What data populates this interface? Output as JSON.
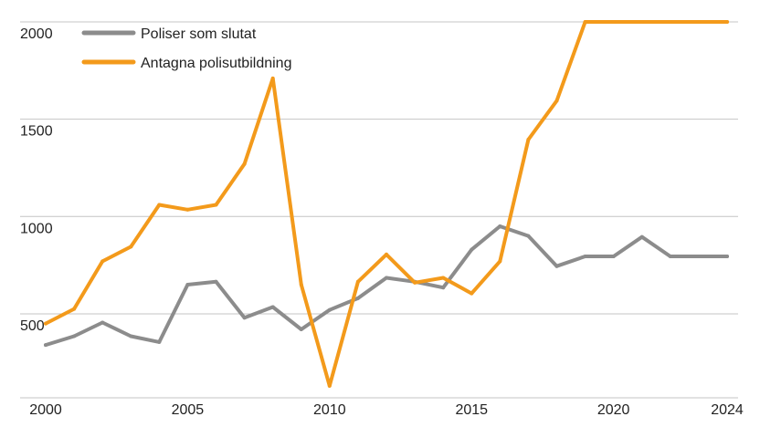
{
  "chart_data": {
    "type": "line",
    "x": [
      2000,
      2001,
      2002,
      2003,
      2004,
      2005,
      2006,
      2007,
      2008,
      2009,
      2010,
      2011,
      2012,
      2013,
      2014,
      2015,
      2016,
      2017,
      2018,
      2019,
      2020,
      2021,
      2022,
      2023,
      2024
    ],
    "series": [
      {
        "name": "Poliser som slutat",
        "color": "#8c8c8c",
        "values": [
          340,
          385,
          455,
          385,
          355,
          650,
          665,
          480,
          535,
          420,
          520,
          580,
          685,
          665,
          635,
          830,
          950,
          900,
          745,
          795,
          795,
          895,
          795,
          795,
          795
        ]
      },
      {
        "name": "Antagna polisutbildning",
        "color": "#f39a1b",
        "values": [
          450,
          525,
          770,
          845,
          1060,
          1035,
          1060,
          1270,
          1710,
          650,
          130,
          665,
          805,
          660,
          685,
          605,
          770,
          1395,
          1595,
          2000,
          2000,
          2000,
          2000,
          2000,
          2000
        ]
      }
    ],
    "xticks": [
      "2000",
      "2005",
      "2010",
      "2015",
      "2020",
      "2024"
    ],
    "yticks": [
      "500",
      "1000",
      "1500",
      "2000"
    ],
    "ylim": [
      0,
      2000
    ],
    "grid": true,
    "legend": "top-left"
  }
}
